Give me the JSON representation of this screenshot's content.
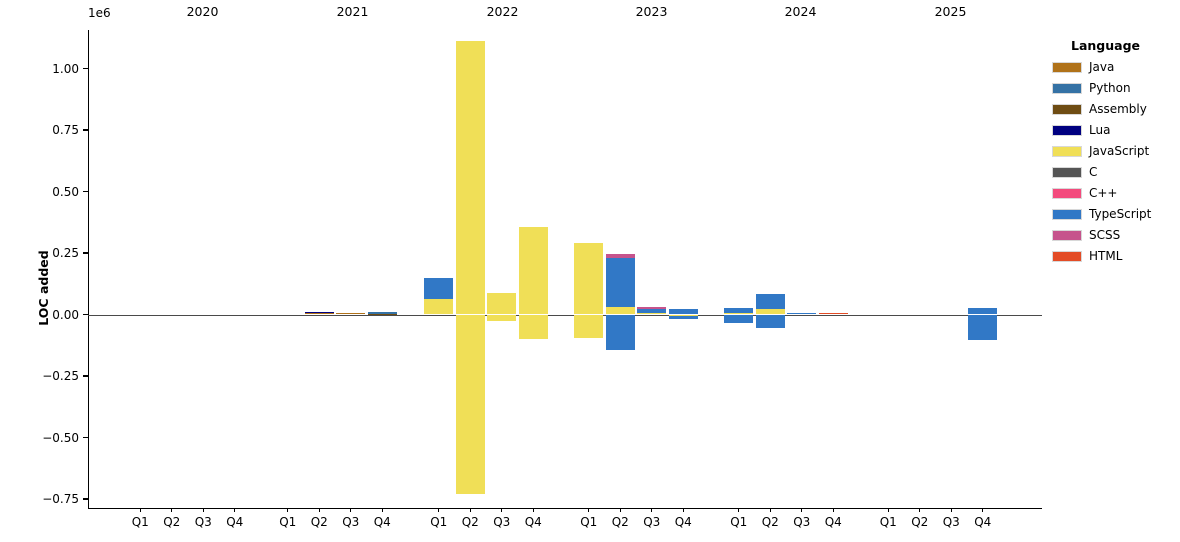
{
  "figure": {
    "offset_label": "1e6",
    "ylabel": "LOC added"
  },
  "chart_data": {
    "type": "bar",
    "stacked": true,
    "title": "",
    "xlabel": "",
    "ylabel": "LOC added",
    "y_offset_text": "1e6",
    "ylim": [
      -780000,
      1150000
    ],
    "grid": false,
    "legend_position": "right",
    "legend_title": "Language",
    "languages": [
      {
        "name": "Java",
        "color": "#b07219"
      },
      {
        "name": "Python",
        "color": "#3572a5"
      },
      {
        "name": "Assembly",
        "color": "#6e4c13"
      },
      {
        "name": "Lua",
        "color": "#000080"
      },
      {
        "name": "JavaScript",
        "color": "#f0df57"
      },
      {
        "name": "C",
        "color": "#555555"
      },
      {
        "name": "C++",
        "color": "#f34b7d"
      },
      {
        "name": "TypeScript",
        "color": "#3178c6"
      },
      {
        "name": "SCSS",
        "color": "#c6538c"
      },
      {
        "name": "HTML",
        "color": "#e34c26"
      }
    ],
    "yticks": {
      "values": [
        1000000,
        750000,
        500000,
        250000,
        0,
        -250000,
        -500000,
        -750000
      ],
      "labels": [
        "1.00",
        "0.75",
        "0.50",
        "0.25",
        "0.00",
        "−0.25",
        "−0.50",
        "−0.75"
      ]
    },
    "years": [
      {
        "label": "2020",
        "quarters": [
          {
            "label": "Q1",
            "segments": []
          },
          {
            "label": "Q2",
            "segments": []
          },
          {
            "label": "Q3",
            "segments": []
          },
          {
            "label": "Q4",
            "segments": []
          }
        ]
      },
      {
        "label": "2021",
        "quarters": [
          {
            "label": "Q1",
            "segments": []
          },
          {
            "label": "Q2",
            "segments": [
              {
                "language": "Java",
                "value": 5000
              },
              {
                "language": "Lua",
                "value": 6000
              }
            ]
          },
          {
            "label": "Q3",
            "segments": [
              {
                "language": "Java",
                "value": 7000
              }
            ]
          },
          {
            "label": "Q4",
            "segments": [
              {
                "language": "Assembly",
                "value": 4000
              },
              {
                "language": "Python",
                "value": 7000
              }
            ]
          }
        ]
      },
      {
        "label": "2022",
        "quarters": [
          {
            "label": "Q1",
            "segments": [
              {
                "language": "JavaScript",
                "value": 65000
              },
              {
                "language": "TypeScript",
                "value": 85000
              }
            ]
          },
          {
            "label": "Q2",
            "segments": [
              {
                "language": "JavaScript",
                "value": 1110000
              },
              {
                "language": "JavaScript",
                "value": -730000
              }
            ]
          },
          {
            "label": "Q3",
            "segments": [
              {
                "language": "JavaScript",
                "value": 88000
              },
              {
                "language": "JavaScript",
                "value": -25000
              }
            ]
          },
          {
            "label": "Q4",
            "segments": [
              {
                "language": "JavaScript",
                "value": 355000
              },
              {
                "language": "JavaScript",
                "value": -100000
              }
            ]
          }
        ]
      },
      {
        "label": "2023",
        "quarters": [
          {
            "label": "Q1",
            "segments": [
              {
                "language": "JavaScript",
                "value": 290000
              },
              {
                "language": "JavaScript",
                "value": -95000
              }
            ]
          },
          {
            "label": "Q2",
            "segments": [
              {
                "language": "JavaScript",
                "value": 30000
              },
              {
                "language": "TypeScript",
                "value": 200000
              },
              {
                "language": "SCSS",
                "value": 15000
              },
              {
                "language": "TypeScript",
                "value": -143000
              }
            ]
          },
          {
            "label": "Q3",
            "segments": [
              {
                "language": "JavaScript",
                "value": 8000
              },
              {
                "language": "TypeScript",
                "value": 16000
              },
              {
                "language": "SCSS",
                "value": 5000
              }
            ]
          },
          {
            "label": "Q4",
            "segments": [
              {
                "language": "TypeScript",
                "value": 21000
              },
              {
                "language": "JavaScript",
                "value": -7000
              },
              {
                "language": "TypeScript",
                "value": -12000
              }
            ]
          }
        ]
      },
      {
        "label": "2024",
        "quarters": [
          {
            "label": "Q1",
            "segments": [
              {
                "language": "JavaScript",
                "value": 6000
              },
              {
                "language": "TypeScript",
                "value": 20000
              },
              {
                "language": "TypeScript",
                "value": -33000
              }
            ]
          },
          {
            "label": "Q2",
            "segments": [
              {
                "language": "JavaScript",
                "value": 21000
              },
              {
                "language": "TypeScript",
                "value": 63000
              },
              {
                "language": "TypeScript",
                "value": -56000
              }
            ]
          },
          {
            "label": "Q3",
            "segments": [
              {
                "language": "TypeScript",
                "value": 6000
              }
            ]
          },
          {
            "label": "Q4",
            "segments": [
              {
                "language": "HTML",
                "value": 5000
              }
            ]
          }
        ]
      },
      {
        "label": "2025",
        "quarters": [
          {
            "label": "Q1",
            "segments": []
          },
          {
            "label": "Q2",
            "segments": []
          },
          {
            "label": "Q3",
            "segments": []
          },
          {
            "label": "Q4",
            "segments": [
              {
                "language": "TypeScript",
                "value": 28000
              },
              {
                "language": "TypeScript",
                "value": -104000
              }
            ]
          }
        ]
      }
    ]
  }
}
